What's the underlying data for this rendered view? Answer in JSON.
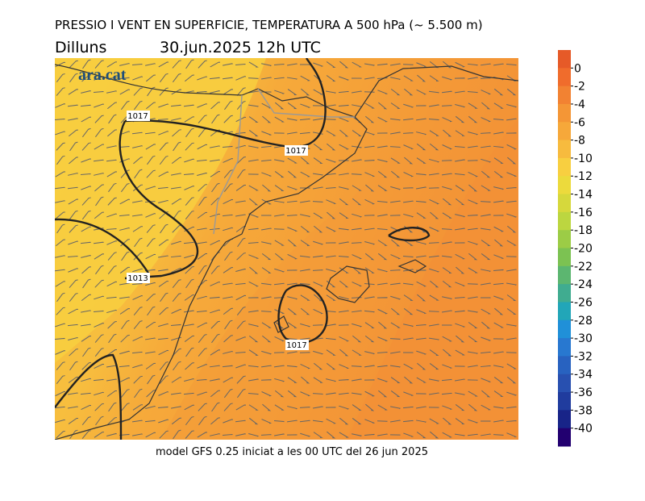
{
  "header": {
    "title": "PRESSIO I VENT EN SUPERFICIE, TEMPERATURA A 500 hPa (~ 5.500 m)",
    "day": "Dilluns",
    "date": "30.jun.2025  12h  UTC"
  },
  "map": {
    "logo": "ara.cat",
    "isobar_labels": [
      "1017",
      "1017",
      "1013",
      "1017"
    ]
  },
  "colorbar": {
    "levels": [
      0,
      -2,
      -4,
      -6,
      -8,
      -10,
      -12,
      -14,
      -16,
      -18,
      -20,
      -22,
      -24,
      -26,
      -28,
      -30,
      -32,
      -34,
      -36,
      -38,
      -40
    ],
    "colors": [
      "#e65a28",
      "#f06c2c",
      "#f28232",
      "#f49636",
      "#f6a83a",
      "#f7bb3e",
      "#f8cf40",
      "#ecda3c",
      "#d6d83c",
      "#bcd640",
      "#9ccc46",
      "#7cc252",
      "#5cb670",
      "#40ac90",
      "#22a6b8",
      "#2090d8",
      "#2878d0",
      "#2862c0",
      "#2850b0",
      "#203c9e",
      "#182488",
      "#220070"
    ]
  },
  "footer": "model GFS 0.25 iniciat a les 00 UTC del 26 jun 2025"
}
